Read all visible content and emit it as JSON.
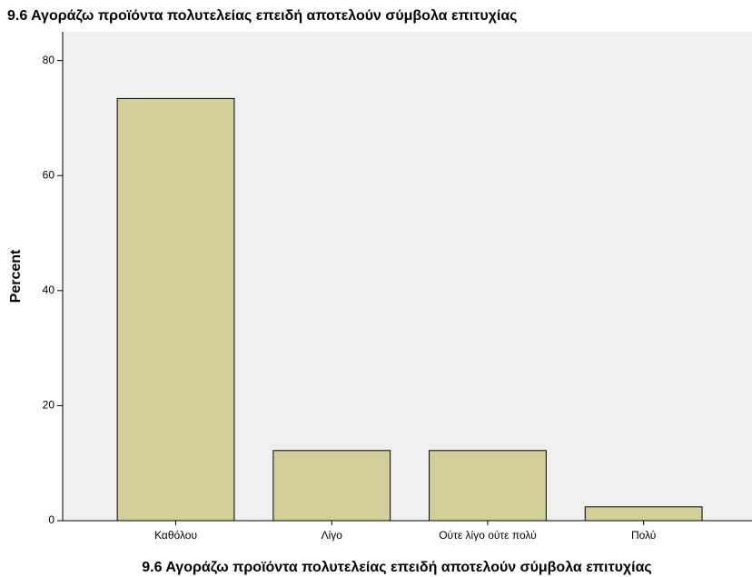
{
  "chart_data": {
    "type": "bar",
    "title": "9.6 Αγοράζω προϊόντα πολυτελείας επειδή αποτελούν σύμβολα επιτυχίας",
    "x_label": "9.6 Αγοράζω προϊόντα πολυτελείας επειδή αποτελούν σύμβολα επιτυχίας",
    "y_label": "Percent",
    "categories": [
      "Καθόλου",
      "Λίγο",
      "Ούτε λίγο ούτε πολύ",
      "Πολύ"
    ],
    "values": [
      73.4,
      12.2,
      12.2,
      2.4
    ],
    "color": "#d3ce98",
    "ylim": [
      0,
      85
    ],
    "yticks": [
      0,
      20,
      40,
      60,
      80
    ],
    "grid": false
  }
}
